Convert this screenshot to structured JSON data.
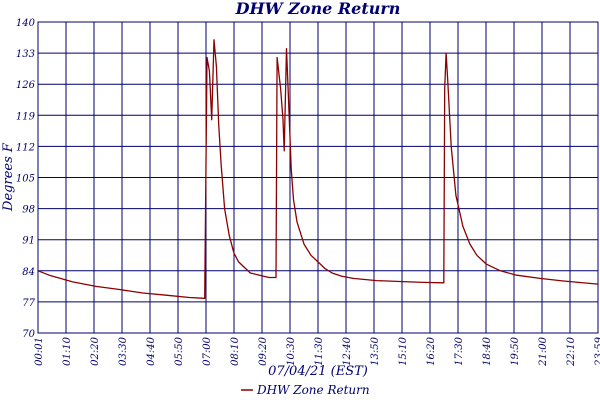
{
  "chart_data": {
    "type": "line",
    "title": "DHW Zone Return",
    "xlabel": "07/04/21 (EST)",
    "ylabel": "Degrees F",
    "ylim": [
      70,
      140
    ],
    "yticks": [
      70,
      77,
      84,
      91,
      98,
      105,
      112,
      119,
      126,
      133,
      140
    ],
    "xlim_hours": [
      0.0167,
      23.98
    ],
    "xticks": [
      "00:01",
      "01:10",
      "02:20",
      "03:30",
      "04:40",
      "05:50",
      "07:00",
      "08:10",
      "09:20",
      "10:30",
      "11:30",
      "12:40",
      "13:50",
      "15:10",
      "16:20",
      "17:30",
      "18:40",
      "19:50",
      "21:00",
      "22:10",
      "23:59"
    ],
    "grid": true,
    "legend_position": "bottom",
    "colors": {
      "series": "#8b0000",
      "axis": "#00006e",
      "grid": "#00006e"
    },
    "series": [
      {
        "name": "DHW Zone Return",
        "x": [
          0.02,
          0.5,
          1.5,
          2.5,
          3.5,
          4.5,
          5.5,
          6.5,
          7.15,
          7.2,
          7.25,
          7.35,
          7.45,
          7.55,
          7.65,
          7.75,
          7.85,
          8.0,
          8.2,
          8.4,
          8.6,
          8.8,
          9.1,
          9.5,
          9.9,
          10.2,
          10.25,
          10.4,
          10.5,
          10.55,
          10.65,
          10.72,
          10.85,
          10.95,
          11.1,
          11.4,
          11.7,
          12.0,
          12.3,
          12.6,
          13.0,
          13.5,
          14.5,
          15.5,
          16.5,
          17.38,
          17.42,
          17.48,
          17.55,
          17.7,
          17.9,
          18.2,
          18.5,
          18.8,
          19.2,
          19.8,
          20.5,
          21.5,
          22.5,
          23.98
        ],
        "y": [
          84,
          83,
          81.5,
          80.5,
          79.8,
          79,
          78.5,
          78,
          77.8,
          106,
          132,
          129,
          118,
          136,
          130,
          117,
          108,
          98,
          92,
          88,
          86,
          85,
          83.5,
          83,
          82.5,
          82.5,
          132,
          125,
          118,
          111,
          134,
          125,
          107,
          100,
          95,
          90,
          87.5,
          86,
          84.5,
          83.5,
          82.8,
          82.3,
          81.8,
          81.6,
          81.4,
          81.3,
          125,
          133,
          127,
          112,
          101,
          94,
          90,
          87.5,
          85.5,
          84,
          83,
          82.3,
          81.7,
          81
        ]
      }
    ]
  }
}
